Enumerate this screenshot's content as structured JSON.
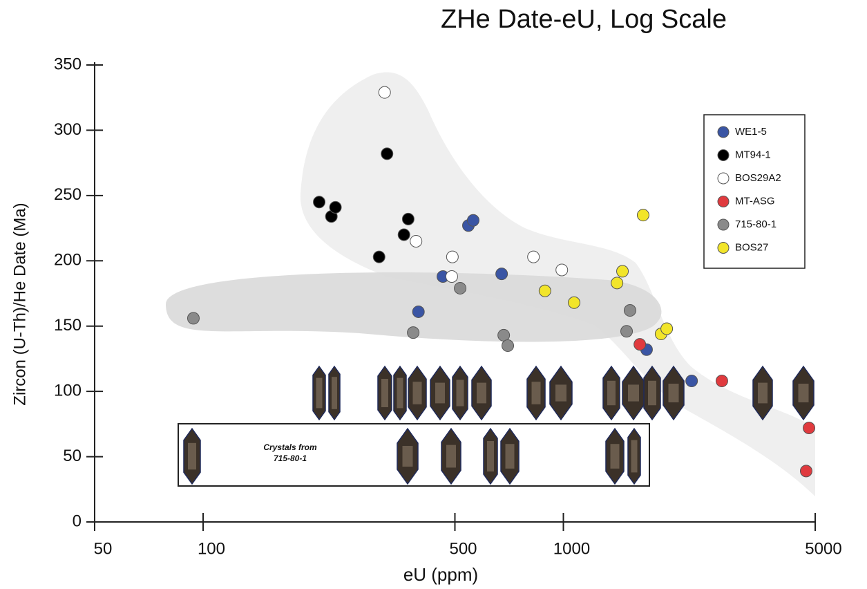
{
  "chart_data": {
    "type": "scatter",
    "title": "ZHe Date-eU, Log Scale",
    "x_label": "eU (ppm)",
    "y_label": "Zircon (U-Th)/He Date (Ma)",
    "annotation": [
      "Crystals from",
      "715-80-1"
    ],
    "xscale": "log",
    "xlim": [
      50,
      5000
    ],
    "xticks": [
      50,
      100,
      500,
      1000,
      5000
    ],
    "ylim": [
      0,
      350
    ],
    "yticks": [
      0,
      50,
      100,
      150,
      200,
      250,
      300,
      350
    ],
    "legend": "upper right",
    "series": [
      {
        "name": "WE1-5",
        "color": "#3a55a4",
        "x": [
          463,
          396,
          545,
          562,
          674,
          1702,
          2270
        ],
        "values": [
          188,
          161,
          227,
          231,
          190,
          132,
          108
        ]
      },
      {
        "name": "MT94-1",
        "color": "#000000",
        "x": [
          210,
          227,
          233,
          324,
          308,
          361,
          371
        ],
        "values": [
          245,
          234,
          241,
          282,
          203,
          220,
          232
        ]
      },
      {
        "name": "BOS29A2",
        "color": "#ffffff",
        "x": [
          319,
          390,
          492,
          490,
          826,
          990
        ],
        "values": [
          329,
          215,
          203,
          188,
          203,
          193
        ]
      },
      {
        "name": "MT-ASG",
        "color": "#e03a3e",
        "x": [
          1630,
          2754,
          4806,
          4720
        ],
        "values": [
          136,
          108,
          72,
          39
        ]
      },
      {
        "name": "715-80-1",
        "color": "#8a8a8a",
        "x": [
          94,
          383,
          517,
          683,
          701,
          1531,
          1498
        ],
        "values": [
          156,
          145,
          179,
          143,
          135,
          162,
          146
        ]
      },
      {
        "name": "BOS27",
        "color": "#f2e52a",
        "x": [
          889,
          1071,
          1409,
          1459,
          1665,
          1867,
          1936
        ],
        "values": [
          177,
          168,
          183,
          192,
          235,
          144,
          148
        ]
      }
    ]
  }
}
